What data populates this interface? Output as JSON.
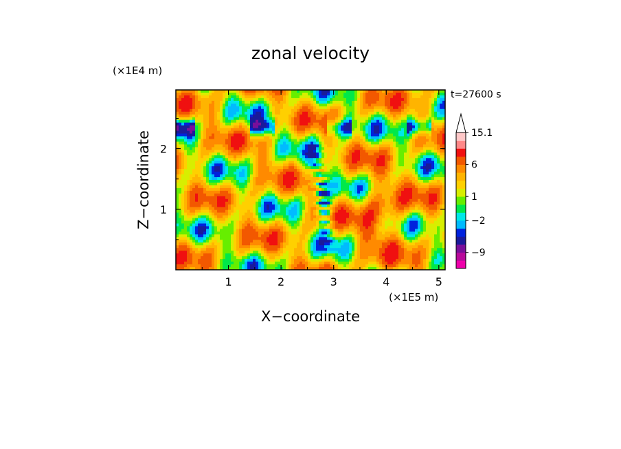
{
  "chart_data": {
    "type": "heatmap",
    "title": "zonal velocity",
    "xlabel": "X−coordinate",
    "ylabel": "Z−coordinate",
    "x_unit": "(×1E5 m)",
    "y_unit": "(×1E4 m)",
    "time_label": "t=27600 s",
    "xlim": [
      0,
      5.12
    ],
    "ylim": [
      0,
      2.97
    ],
    "x_ticks": [
      "1",
      "2",
      "3",
      "4",
      "5"
    ],
    "y_ticks": [
      "1",
      "2"
    ],
    "colorbar": {
      "levels": [
        -15,
        -12,
        -9,
        -6,
        -4,
        -3,
        -2,
        -1,
        0,
        1,
        2,
        3,
        4.5,
        6,
        8,
        10.5,
        13,
        15.1
      ],
      "colors": [
        "#ee00aa",
        "#b80a9a",
        "#7a0f9a",
        "#1a1a9a",
        "#0022dd",
        "#00bbff",
        "#00e8e8",
        "#00e84a",
        "#66ee00",
        "#d8ee00",
        "#ffd000",
        "#ffb400",
        "#ff8a00",
        "#f25800",
        "#f01010",
        "#ff8888",
        "#ffc8c8"
      ],
      "tick_labels": [
        "15.1",
        "6",
        "1",
        "−2",
        "−9"
      ]
    }
  }
}
